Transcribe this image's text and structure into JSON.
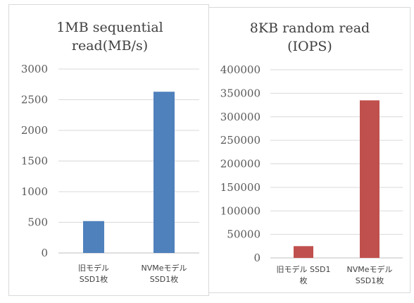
{
  "chart_data": [
    {
      "type": "bar",
      "title_lines": [
        "1MB sequential",
        "read(MB/s)"
      ],
      "categories": [
        [
          "旧モデル",
          "SSD1枚"
        ],
        [
          "NVMeモデル",
          "SSD1枚"
        ]
      ],
      "values": [
        520,
        2630
      ],
      "ylim": [
        0,
        3000
      ],
      "yticks": [
        "0",
        "500",
        "1000",
        "1500",
        "2000",
        "2500",
        "3000"
      ],
      "grid": true,
      "legend": "none",
      "color": "#4f81bd"
    },
    {
      "type": "bar",
      "title_lines": [
        "8KB random read",
        "(IOPS)"
      ],
      "categories": [
        [
          "旧モデル SSD1",
          "枚"
        ],
        [
          "NVMeモデル",
          "SSD1枚"
        ]
      ],
      "values": [
        25000,
        335000
      ],
      "ylim": [
        0,
        400000
      ],
      "yticks": [
        "0",
        "50000",
        "100000",
        "150000",
        "200000",
        "250000",
        "300000",
        "350000",
        "400000"
      ],
      "grid": true,
      "legend": "none",
      "color": "#c0504d"
    }
  ]
}
